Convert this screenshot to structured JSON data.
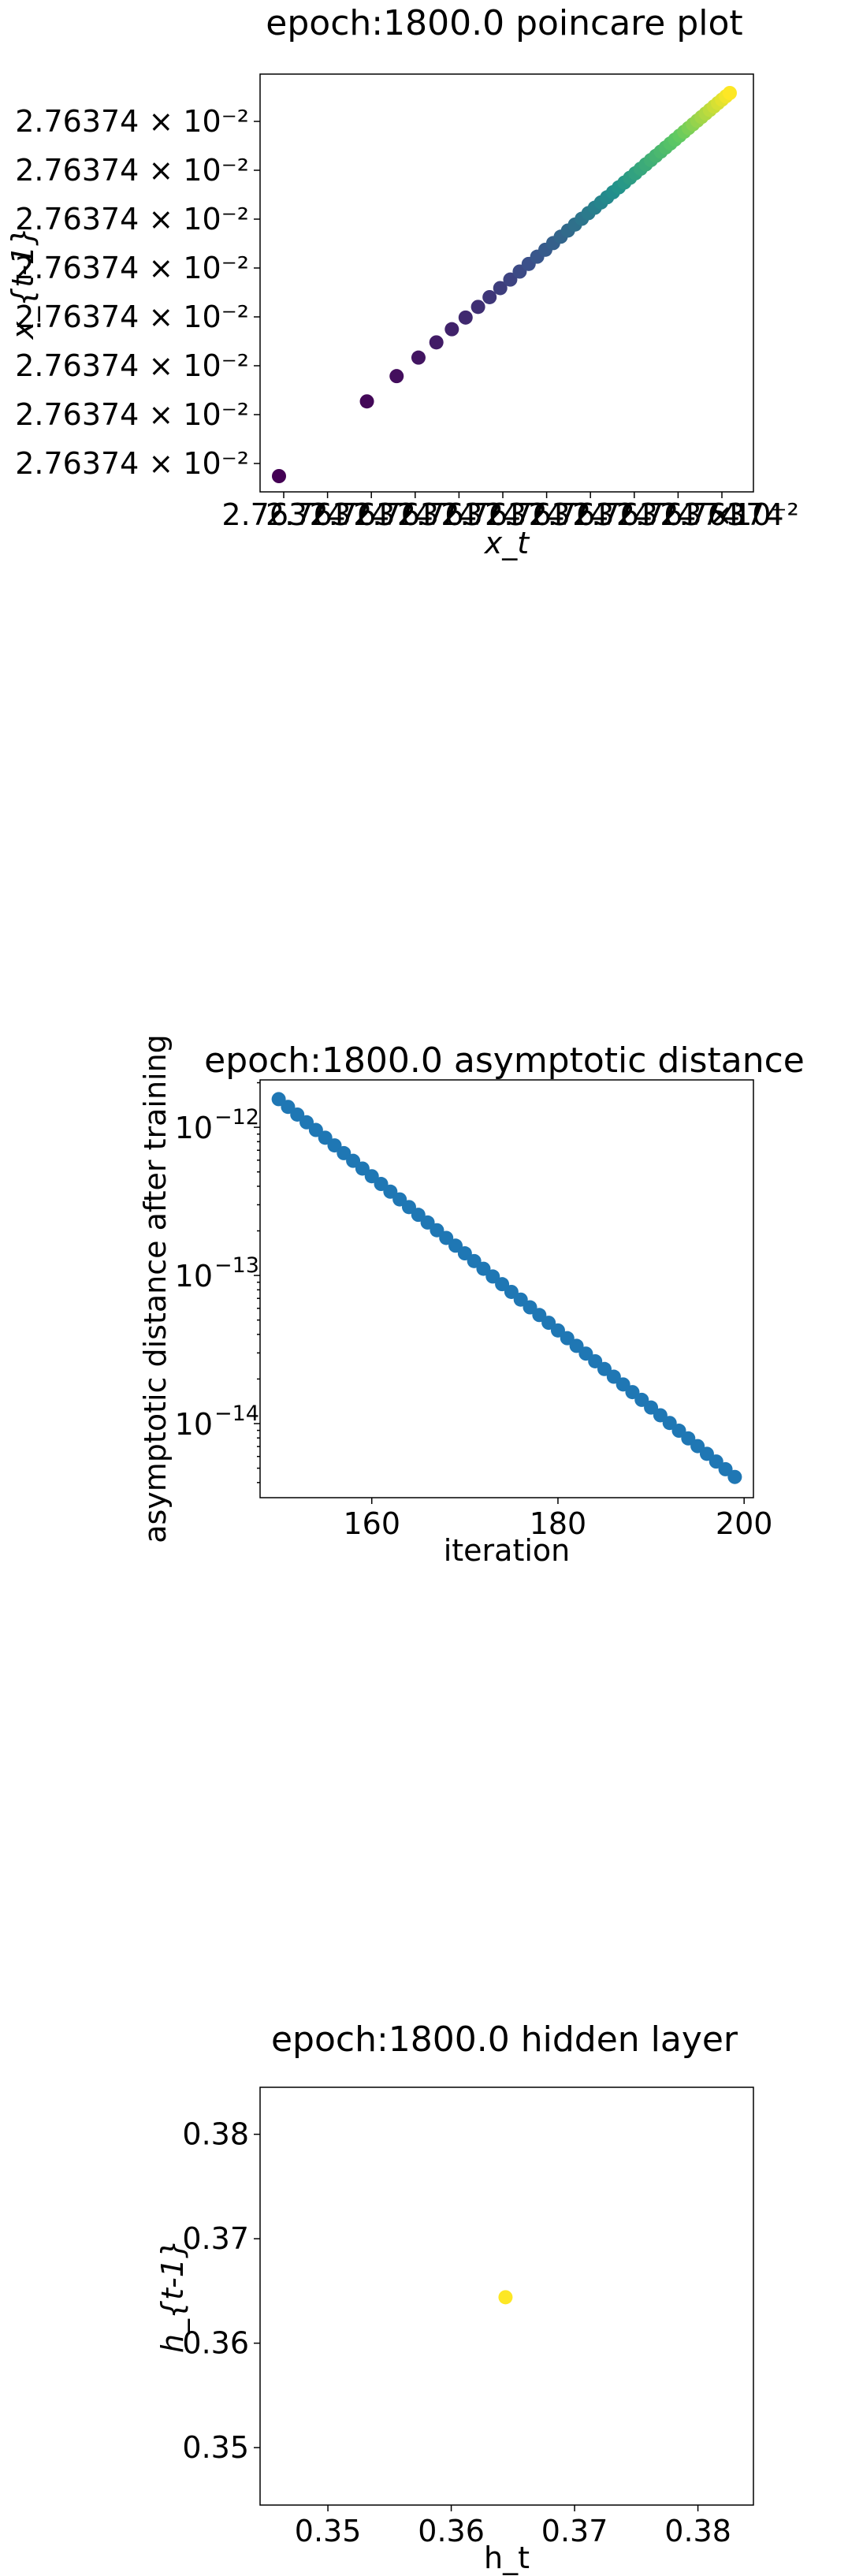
{
  "chart_data": [
    {
      "type": "scatter",
      "title": "epoch:1800.0 poincare plot",
      "xlabel": "x_t",
      "ylabel": "x_{t-1}",
      "xtick_labels": [
        "2.76374",
        "2.76374",
        "2.76374",
        "2.76374",
        "2.76374",
        "2.76374",
        "2.76374",
        "2.76374",
        "2.76374",
        "2.76374",
        "2.76374"
      ],
      "x_scale_label": "×10⁻²",
      "ytick_labels": [
        "2.76374 × 10⁻²",
        "2.76374 × 10⁻²",
        "2.76374 × 10⁻²",
        "2.76374 × 10⁻²",
        "2.76374 × 10⁻²",
        "2.76374 × 10⁻²",
        "2.76374 × 10⁻²",
        "2.76374 × 10⁻²"
      ],
      "colormap": [
        "#440154",
        "#3b528b",
        "#21918c",
        "#5ec962",
        "#fde725"
      ],
      "points_count": 50
    },
    {
      "type": "scatter",
      "title": "epoch:1800.0 asymptotic distance",
      "xlabel": "iteration",
      "ylabel": "asymptotic distance after training",
      "y_scale": "log",
      "xlim": [
        148,
        201
      ],
      "ylim_log10": [
        -14.5,
        -11.68
      ],
      "xticks": [
        160,
        180,
        200
      ],
      "yticks": [
        {
          "label_base": "10",
          "label_exp": "−12",
          "log10": -12
        },
        {
          "label_base": "10",
          "label_exp": "−13",
          "log10": -13
        },
        {
          "label_base": "10",
          "label_exp": "−14",
          "log10": -14
        }
      ],
      "x_start": 150,
      "x_end": 199,
      "y_start_log10": -11.81,
      "y_end_log10": -14.36,
      "color": "#1f77b4"
    },
    {
      "type": "scatter",
      "title": "epoch:1800.0 hidden layer",
      "xlabel": "h_t",
      "ylabel": "h_{t-1}",
      "xlim": [
        0.3445,
        0.3845
      ],
      "ylim": [
        0.3445,
        0.3845
      ],
      "xticks": [
        {
          "label": "0.35",
          "value": 0.35
        },
        {
          "label": "0.36",
          "value": 0.36
        },
        {
          "label": "0.37",
          "value": 0.37
        },
        {
          "label": "0.38",
          "value": 0.38
        }
      ],
      "yticks": [
        {
          "label": "0.35",
          "value": 0.35
        },
        {
          "label": "0.36",
          "value": 0.36
        },
        {
          "label": "0.37",
          "value": 0.37
        },
        {
          "label": "0.38",
          "value": 0.38
        }
      ],
      "points": [
        {
          "x": 0.3644,
          "y": 0.3644
        }
      ],
      "color": "#fde725"
    }
  ]
}
